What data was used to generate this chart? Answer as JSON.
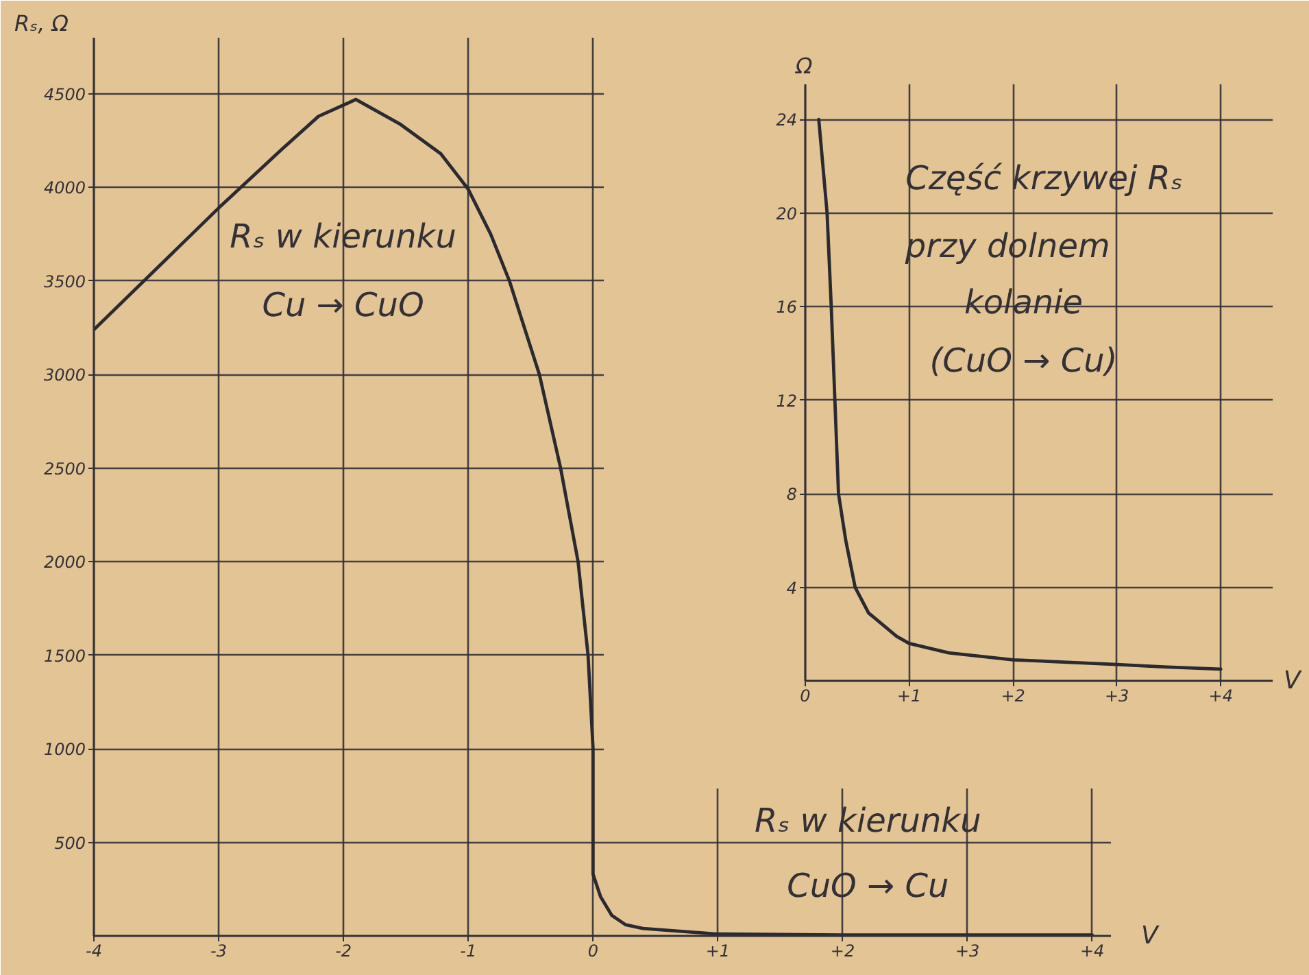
{
  "chart_data": [
    {
      "type": "line",
      "xlabel": "V",
      "ylabel": "Rₛ, Ω",
      "x": [
        -4,
        -3,
        -2.5,
        -2.2,
        -2,
        -1.9,
        -1.55,
        -1.22,
        -1,
        -0.82,
        -0.67,
        -0.43,
        -0.26,
        -0.12,
        -0.04,
        0,
        0,
        0.06,
        0.15,
        0.26,
        0.4,
        1,
        2,
        3,
        4
      ],
      "series": [
        {
          "color": "#2b2a30",
          "values": [
            3240,
            3890,
            4200,
            4380,
            4440,
            4470,
            4340,
            4180,
            3990,
            3750,
            3500,
            3000,
            2500,
            2000,
            1500,
            1000,
            330,
            210,
            110,
            60,
            40,
            10,
            5,
            5,
            5
          ]
        }
      ],
      "xlim": [
        -4,
        4.15
      ],
      "ylim": [
        0,
        4800
      ],
      "xticks": [
        -4,
        -3,
        -2,
        -1,
        0,
        {
          "value": 1,
          "label": "+1"
        },
        {
          "value": 2,
          "label": "+2"
        },
        {
          "value": 3,
          "label": "+3"
        },
        {
          "value": 4,
          "label": "+4"
        }
      ],
      "yticks": [
        500,
        1000,
        1500,
        2000,
        2500,
        3000,
        3500,
        4000,
        4500
      ],
      "grid": true,
      "annotations": [
        "Rₛ w kierunku",
        "Cu → CuO",
        "Rₛ w kierunku",
        "CuO → Cu"
      ]
    },
    {
      "type": "line",
      "xlabel": "V",
      "ylabel": "Ω",
      "x": [
        0.13,
        0.21,
        0.25,
        0.285,
        0.32,
        0.39,
        0.48,
        0.61,
        0.88,
        1,
        1.38,
        2,
        3,
        3.45,
        4
      ],
      "series": [
        {
          "color": "#2b2a30",
          "values": [
            24,
            20,
            16,
            12,
            8,
            6,
            4,
            2.9,
            1.9,
            1.6,
            1.2,
            0.9,
            0.7,
            0.6,
            0.5
          ]
        }
      ],
      "xlim": [
        0,
        4.5
      ],
      "ylim": [
        0,
        25.5
      ],
      "xticks": [
        0,
        {
          "value": 1,
          "label": "+1"
        },
        {
          "value": 2,
          "label": "+2"
        },
        {
          "value": 3,
          "label": "+3"
        },
        {
          "value": 4,
          "label": "+4"
        }
      ],
      "yticks": [
        4,
        8,
        12,
        16,
        20,
        24
      ],
      "grid": true,
      "annotations": [
        "Część krzywej Rₛ",
        "przy dolnem",
        "kolanie",
        "(CuO → Cu)"
      ]
    }
  ]
}
